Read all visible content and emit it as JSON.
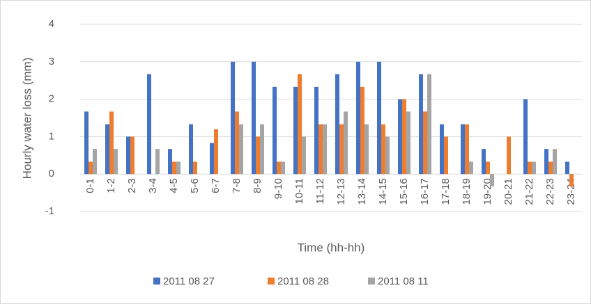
{
  "chart_data": {
    "type": "bar",
    "y_label": "Hourly water loss (mm)",
    "x_label": "Time (hh-hh)",
    "categories": [
      "0-1",
      "1-2",
      "2-3",
      "3-4",
      "4-5",
      "5-6",
      "6-7",
      "7-8",
      "8-9",
      "9-10",
      "10-11",
      "11-12",
      "12-13",
      "13-14",
      "14-15",
      "15-16",
      "16-17",
      "17-18",
      "18-19",
      "19-20",
      "20-21",
      "21-22",
      "22-23",
      "23-24"
    ],
    "series": [
      {
        "name": "2011 08 27",
        "color": "#4472c4",
        "values": [
          1.67,
          1.33,
          1,
          2.67,
          0.67,
          1.33,
          0.83,
          3,
          3,
          2.33,
          2.33,
          2.33,
          2.67,
          3,
          3,
          2,
          2.67,
          1.33,
          1.33,
          0.67,
          0,
          2,
          0.67,
          0.33
        ]
      },
      {
        "name": "2011 08 28",
        "color": "#ed7d31",
        "values": [
          0.33,
          1.67,
          1,
          0,
          0.33,
          0.33,
          1.2,
          1.67,
          1,
          0.33,
          2.67,
          1.33,
          1.33,
          2.33,
          1.33,
          2,
          1.67,
          1,
          1.33,
          0.33,
          1,
          0.33,
          0.33,
          -0.33
        ]
      },
      {
        "name": "2011 08 11",
        "color": "#a5a5a5",
        "values": [
          0.67,
          0.67,
          0,
          0.67,
          0.33,
          0,
          0,
          1.33,
          1.33,
          0.33,
          1,
          1.33,
          1.67,
          1.33,
          1,
          1.67,
          2.67,
          0,
          0.33,
          -0.33,
          0,
          0.33,
          0.67,
          0
        ]
      }
    ],
    "ylim": [
      -1,
      4
    ],
    "yticks": [
      -1,
      0,
      1,
      2,
      3,
      4
    ],
    "grid": true,
    "legend": "bottom"
  }
}
